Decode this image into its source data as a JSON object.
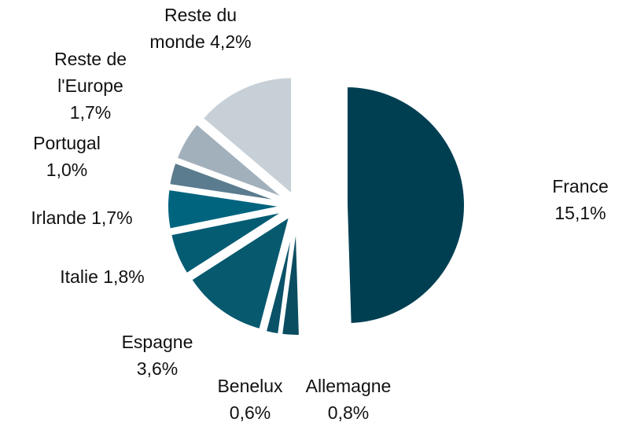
{
  "chart_data": {
    "type": "pie",
    "categories": [
      "France",
      "Allemagne",
      "Benelux",
      "Espagne",
      "Italie",
      "Irlande",
      "Portugal",
      "Reste de l'Europe",
      "Reste du monde"
    ],
    "values": [
      15.1,
      0.8,
      0.6,
      3.6,
      1.8,
      1.7,
      1.0,
      1.7,
      4.2
    ],
    "value_labels": [
      "15,1%",
      "0,8%",
      "0,6%",
      "3,6%",
      "1,8%",
      "1,7%",
      "1,0%",
      "1,7%",
      "4,2%"
    ],
    "colors": [
      "#003f52",
      "#0b4d60",
      "#0a5268",
      "#07596e",
      "#045c73",
      "#00647f",
      "#5b7c8e",
      "#a2b0bc",
      "#c8d0d7"
    ]
  }
}
